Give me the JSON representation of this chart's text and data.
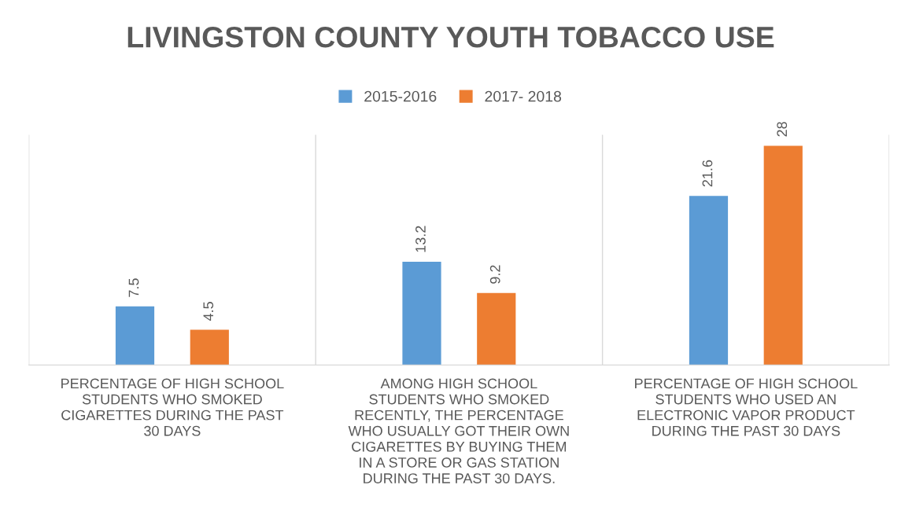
{
  "chart_data": {
    "type": "bar",
    "title": "LIVINGSTON COUNTY YOUTH TOBACCO USE",
    "categories": [
      "PERCENTAGE OF HIGH SCHOOL\nSTUDENTS WHO SMOKED\nCIGARETTES DURING THE PAST\n30 DAYS",
      "AMONG HIGH SCHOOL\nSTUDENTS WHO SMOKED\nRECENTLY, THE PERCENTAGE\nWHO USUALLY GOT THEIR OWN\nCIGARETTES BY BUYING THEM\nIN A STORE OR GAS STATION\nDURING THE PAST 30 DAYS.",
      "PERCENTAGE OF HIGH SCHOOL\nSTUDENTS WHO USED AN\nELECTRONIC VAPOR PRODUCT\nDURING THE PAST 30 DAYS"
    ],
    "series": [
      {
        "name": "2015-2016",
        "color": "#5b9bd5",
        "values": [
          7.5,
          13.2,
          21.6
        ]
      },
      {
        "name": "2017- 2018",
        "color": "#ed7d31",
        "values": [
          4.5,
          9.2,
          28
        ]
      }
    ],
    "data_labels": true,
    "legend": "top",
    "tick_labels": "x"
  }
}
